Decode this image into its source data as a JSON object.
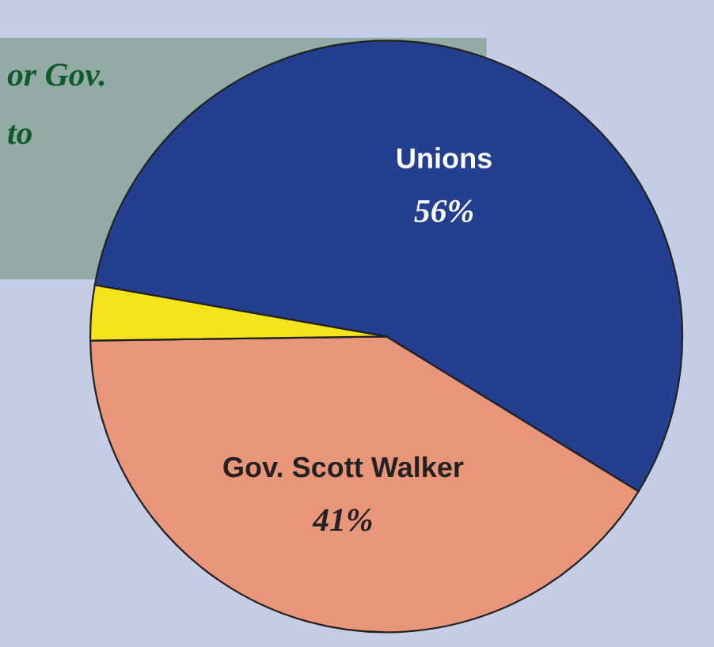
{
  "chart_data": {
    "type": "pie",
    "categories": [
      "Unions",
      "Gov. Scott Walker",
      null
    ],
    "values": [
      56,
      41,
      3
    ],
    "colors": [
      "#243f8f",
      "#e8957a",
      "#f5e41a"
    ],
    "value_labels": [
      "56%",
      "41%",
      null
    ],
    "annotations": [
      "or Gov.",
      "to"
    ],
    "legend": false
  }
}
